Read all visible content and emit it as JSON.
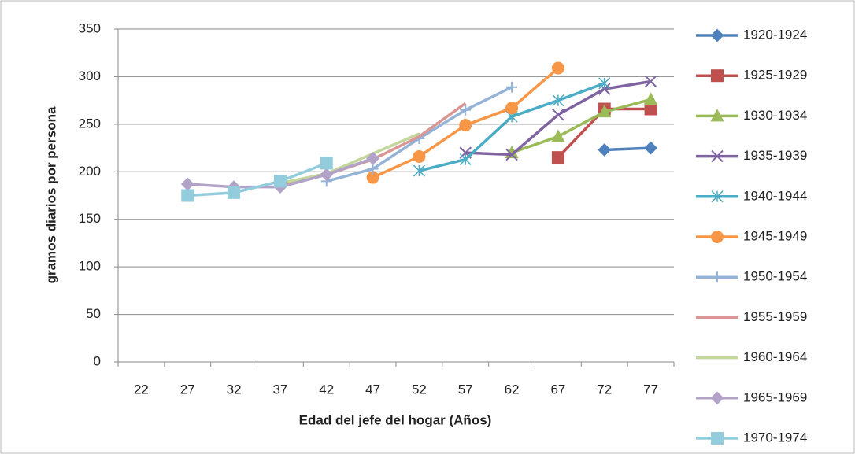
{
  "chart_data": {
    "type": "line",
    "x_label": "Edad del jefe del hogar (Años)",
    "y_label": "gramos diarios  por persona",
    "categories": [
      "22",
      "27",
      "32",
      "37",
      "42",
      "47",
      "52",
      "57",
      "62",
      "67",
      "72",
      "77"
    ],
    "ylim": [
      0,
      350
    ],
    "yticks": [
      0,
      50,
      100,
      150,
      200,
      250,
      300,
      350
    ],
    "grid": true,
    "legend": "right",
    "series": [
      {
        "name": "1920-1924",
        "color": "#4f81bd",
        "marker": "diamond",
        "values": [
          null,
          null,
          null,
          null,
          null,
          null,
          null,
          null,
          null,
          null,
          223,
          225
        ]
      },
      {
        "name": "1925-1929",
        "color": "#c0504d",
        "marker": "square",
        "values": [
          null,
          null,
          null,
          null,
          null,
          null,
          null,
          null,
          null,
          215,
          266,
          266
        ]
      },
      {
        "name": "1930-1934",
        "color": "#9bbb59",
        "marker": "triangle",
        "values": [
          null,
          null,
          null,
          null,
          null,
          null,
          null,
          null,
          220,
          237,
          263,
          276
        ]
      },
      {
        "name": "1935-1939",
        "color": "#8064a2",
        "marker": "x",
        "values": [
          null,
          null,
          null,
          null,
          null,
          null,
          null,
          220,
          218,
          260,
          287,
          295
        ]
      },
      {
        "name": "1940-1944",
        "color": "#4bacc6",
        "marker": "star",
        "values": [
          null,
          null,
          null,
          null,
          null,
          null,
          201,
          213,
          258,
          275,
          293,
          null
        ]
      },
      {
        "name": "1945-1949",
        "color": "#f79646",
        "marker": "circle",
        "values": [
          null,
          null,
          null,
          null,
          null,
          194,
          216,
          249,
          267,
          309,
          null,
          null
        ]
      },
      {
        "name": "1950-1954",
        "color": "#95b3d7",
        "marker": "plus",
        "values": [
          null,
          null,
          null,
          null,
          190,
          203,
          235,
          265,
          289,
          null,
          null,
          null
        ]
      },
      {
        "name": "1955-1959",
        "color": "#d99694",
        "marker": "none",
        "values": [
          null,
          null,
          null,
          186,
          197,
          213,
          237,
          272,
          null,
          null,
          null,
          null
        ]
      },
      {
        "name": "1960-1964",
        "color": "#c3d69b",
        "marker": "none",
        "values": [
          null,
          null,
          null,
          188,
          198,
          219,
          240,
          null,
          null,
          null,
          null,
          null
        ]
      },
      {
        "name": "1965-1969",
        "color": "#b3a2c7",
        "marker": "diamond",
        "values": [
          null,
          187,
          184,
          184,
          197,
          214,
          null,
          null,
          null,
          null,
          null,
          null
        ]
      },
      {
        "name": "1970-1974",
        "color": "#93cddd",
        "marker": "square",
        "values": [
          null,
          175,
          178,
          190,
          209,
          null,
          null,
          null,
          null,
          null,
          null,
          null
        ]
      }
    ]
  }
}
